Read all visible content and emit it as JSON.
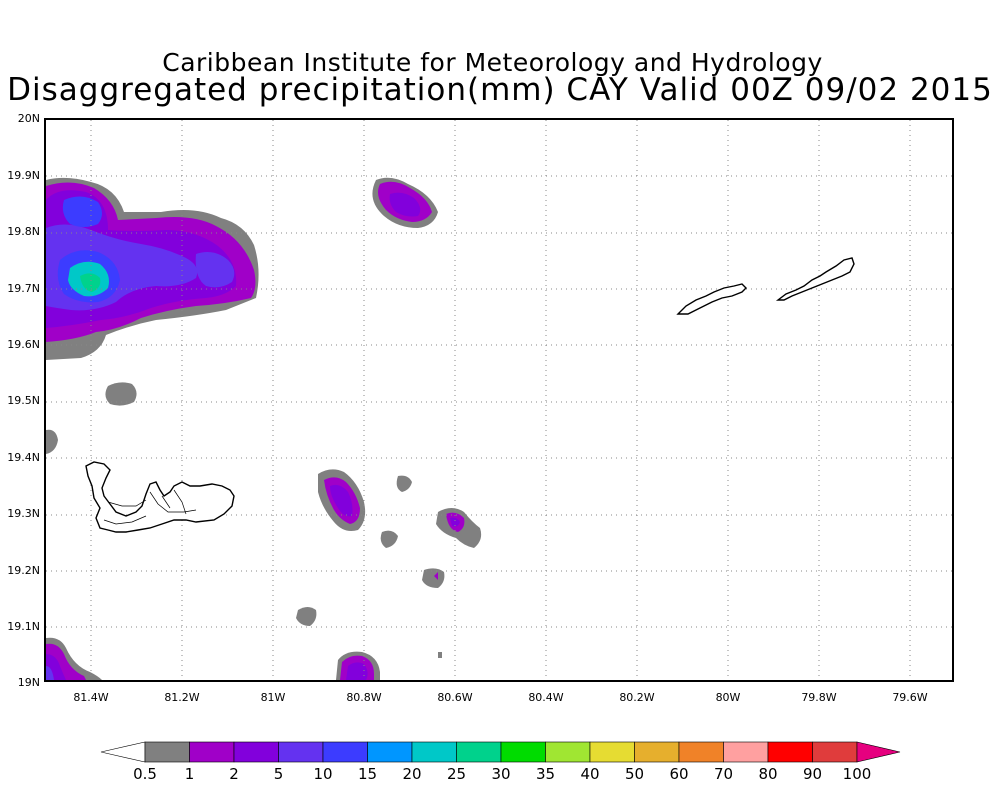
{
  "header": {
    "title_line1": "Caribbean Institute for Meteorology and Hydrology",
    "title_line2": "Disaggregated precipitation(mm) CAY Valid 00Z 09/02 2015"
  },
  "map": {
    "region": "Cayman Islands",
    "lat_labels": [
      "20N",
      "19.9N",
      "19.8N",
      "19.7N",
      "19.6N",
      "19.5N",
      "19.4N",
      "19.3N",
      "19.2N",
      "19.1N",
      "19N"
    ],
    "lon_labels": [
      "81.4W",
      "81.2W",
      "81W",
      "80.8W",
      "80.6W",
      "80.4W",
      "80.2W",
      "80W",
      "79.8W",
      "79.6W"
    ],
    "grid": "dotted"
  },
  "colorbar": {
    "labels": [
      "0.5",
      "1",
      "2",
      "5",
      "10",
      "15",
      "20",
      "25",
      "30",
      "35",
      "40",
      "50",
      "60",
      "70",
      "80",
      "90",
      "100"
    ],
    "colors": [
      "#ffffff",
      "#808080",
      "#a000c8",
      "#8200dc",
      "#6432f0",
      "#3c3cff",
      "#0096ff",
      "#00c8c8",
      "#00d28c",
      "#00dc00",
      "#a0e632",
      "#e6dc32",
      "#e6af2d",
      "#f08228",
      "#ffa0a0",
      "#ff0000",
      "#e03c3c",
      "#e6007f"
    ]
  },
  "legend_colors": {
    "gray": "#808080",
    "purple_dark": "#a000c8",
    "purple": "#8200dc",
    "blue_violet": "#6432f0",
    "blue": "#3c3cff",
    "teal": "#00c8c8",
    "green_teal": "#00d28c"
  }
}
